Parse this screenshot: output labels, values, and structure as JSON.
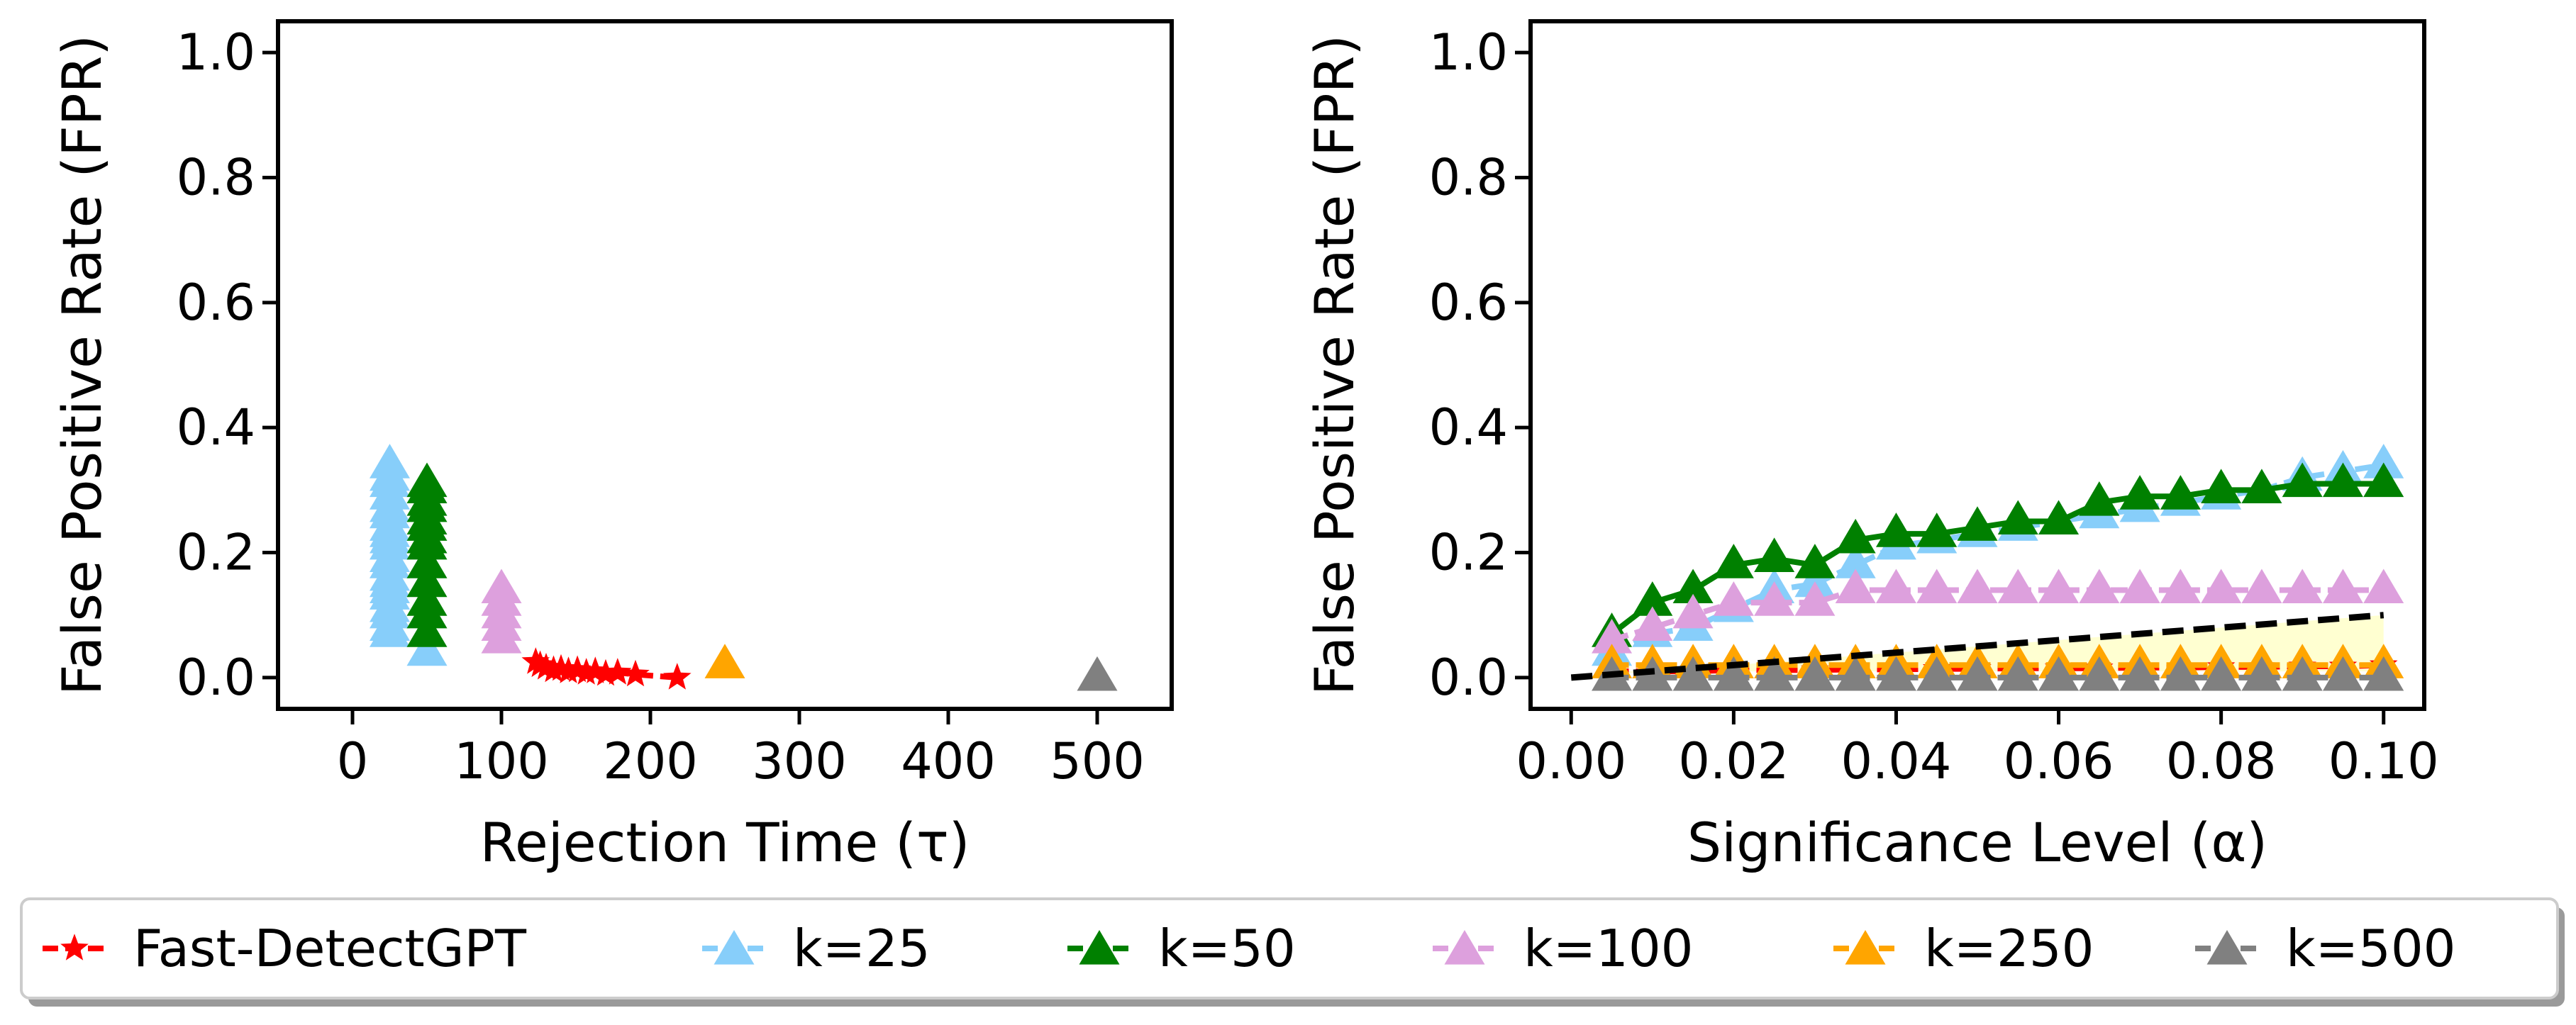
{
  "legend": {
    "entries": [
      {
        "label": "Fast-DetectGPT",
        "color": "#ff0000",
        "marker": "star"
      },
      {
        "label": "k=25",
        "color": "#87cefa",
        "marker": "triangle"
      },
      {
        "label": "k=50",
        "color": "#008000",
        "marker": "triangle"
      },
      {
        "label": "k=100",
        "color": "#dda0dd",
        "marker": "triangle"
      },
      {
        "label": "k=250",
        "color": "#ffa500",
        "marker": "triangle"
      },
      {
        "label": "k=500",
        "color": "#808080",
        "marker": "triangle"
      }
    ],
    "placement": "bottom-center, below both panels"
  },
  "chart_data": [
    {
      "type": "scatter",
      "xlabel": "Rejection Time (τ)",
      "ylabel": "False Positive Rate (FPR)",
      "xlim": [
        -50,
        550
      ],
      "ylim": [
        -0.05,
        1.05
      ],
      "xticks": [
        "0",
        "100",
        "200",
        "300",
        "400",
        "500"
      ],
      "yticks": [
        "0.0",
        "0.2",
        "0.4",
        "0.6",
        "0.8",
        "1.0"
      ],
      "xtick_values": [
        0,
        100,
        200,
        300,
        400,
        500
      ],
      "ytick_values": [
        0,
        0.2,
        0.4,
        0.6,
        0.8,
        1.0
      ],
      "grid": false,
      "series": [
        {
          "name": "Fast-DetectGPT",
          "marker": "star",
          "color": "#ff0000",
          "connected": true,
          "x": [
            218,
            190,
            178,
            170,
            163,
            157,
            151,
            145,
            140,
            135,
            130,
            126,
            123
          ],
          "y": [
            0.0,
            0.005,
            0.008,
            0.006,
            0.01,
            0.008,
            0.012,
            0.01,
            0.014,
            0.012,
            0.016,
            0.02,
            0.025
          ]
        },
        {
          "name": "k=25",
          "marker": "triangle",
          "color": "#87cefa",
          "connected": false,
          "x": [
            25,
            25,
            25,
            25,
            25,
            25,
            25,
            25,
            25,
            25,
            25,
            25,
            25,
            25,
            25,
            25,
            25,
            25,
            25,
            25,
            50
          ],
          "y": [
            0.34,
            0.32,
            0.31,
            0.29,
            0.27,
            0.26,
            0.24,
            0.23,
            0.22,
            0.21,
            0.19,
            0.18,
            0.16,
            0.15,
            0.14,
            0.13,
            0.11,
            0.1,
            0.08,
            0.07,
            0.04
          ]
        },
        {
          "name": "k=50",
          "marker": "triangle",
          "color": "#008000",
          "connected": false,
          "x": [
            50,
            50,
            50,
            50,
            50,
            50,
            50,
            50,
            50,
            50,
            50,
            50,
            50
          ],
          "y": [
            0.31,
            0.3,
            0.28,
            0.27,
            0.25,
            0.24,
            0.22,
            0.21,
            0.18,
            0.15,
            0.12,
            0.1,
            0.07
          ]
        },
        {
          "name": "k=100",
          "marker": "triangle",
          "color": "#dda0dd",
          "connected": false,
          "x": [
            100,
            100,
            100,
            100,
            100
          ],
          "y": [
            0.14,
            0.12,
            0.1,
            0.08,
            0.06
          ]
        },
        {
          "name": "k=250",
          "marker": "triangle",
          "color": "#ffa500",
          "connected": false,
          "x": [
            250
          ],
          "y": [
            0.02
          ]
        },
        {
          "name": "k=500",
          "marker": "triangle",
          "color": "#808080",
          "connected": false,
          "x": [
            500
          ],
          "y": [
            0.0
          ]
        }
      ]
    },
    {
      "type": "line",
      "xlabel": "Significance Level (α)",
      "ylabel": "False Positive Rate (FPR)",
      "xlim": [
        -0.005,
        0.105
      ],
      "ylim": [
        -0.05,
        1.05
      ],
      "xticks": [
        "0.00",
        "0.02",
        "0.04",
        "0.06",
        "0.08",
        "0.10"
      ],
      "yticks": [
        "0.0",
        "0.2",
        "0.4",
        "0.6",
        "0.8",
        "1.0"
      ],
      "xtick_values": [
        0,
        0.02,
        0.04,
        0.06,
        0.08,
        0.1
      ],
      "ytick_values": [
        0,
        0.2,
        0.4,
        0.6,
        0.8,
        1.0
      ],
      "grid": false,
      "x": [
        0.005,
        0.01,
        0.015,
        0.02,
        0.025,
        0.03,
        0.035,
        0.04,
        0.045,
        0.05,
        0.055,
        0.06,
        0.065,
        0.07,
        0.075,
        0.08,
        0.085,
        0.09,
        0.095,
        0.1
      ],
      "reference_line": {
        "x": [
          0,
          0.1
        ],
        "y": [
          0,
          0.1
        ],
        "color": "#000000",
        "style": "dashed"
      },
      "shaded_region": {
        "between": "y=alpha and y=0.01",
        "color": "#ffffcc"
      },
      "series": [
        {
          "name": "Fast-DetectGPT",
          "marker": "star",
          "color": "#ff0000",
          "dashed": true,
          "y": [
            0.01,
            0.01,
            0.01,
            0.012,
            0.012,
            0.012,
            0.013,
            0.013,
            0.014,
            0.014,
            0.015,
            0.015,
            0.015,
            0.016,
            0.016,
            0.017,
            0.017,
            0.018,
            0.018,
            0.02
          ]
        },
        {
          "name": "k=25",
          "marker": "triangle",
          "color": "#87cefa",
          "dashed": true,
          "y": [
            0.04,
            0.07,
            0.08,
            0.11,
            0.14,
            0.15,
            0.18,
            0.21,
            0.22,
            0.23,
            0.24,
            0.25,
            0.26,
            0.27,
            0.28,
            0.29,
            0.3,
            0.32,
            0.33,
            0.34
          ]
        },
        {
          "name": "k=50",
          "marker": "triangle",
          "color": "#008000",
          "dashed": false,
          "y": [
            0.07,
            0.12,
            0.14,
            0.18,
            0.19,
            0.18,
            0.22,
            0.23,
            0.23,
            0.24,
            0.25,
            0.25,
            0.28,
            0.29,
            0.29,
            0.3,
            0.3,
            0.31,
            0.31,
            0.31
          ]
        },
        {
          "name": "k=100",
          "marker": "triangle",
          "color": "#dda0dd",
          "dashed": true,
          "y": [
            0.06,
            0.08,
            0.1,
            0.12,
            0.12,
            0.12,
            0.14,
            0.14,
            0.14,
            0.14,
            0.14,
            0.14,
            0.14,
            0.14,
            0.14,
            0.14,
            0.14,
            0.14,
            0.14,
            0.14
          ]
        },
        {
          "name": "k=250",
          "marker": "triangle",
          "color": "#ffa500",
          "dashed": true,
          "y": [
            0.02,
            0.02,
            0.02,
            0.02,
            0.02,
            0.02,
            0.02,
            0.02,
            0.02,
            0.02,
            0.02,
            0.02,
            0.02,
            0.02,
            0.02,
            0.02,
            0.02,
            0.02,
            0.02,
            0.02
          ]
        },
        {
          "name": "k=500",
          "marker": "triangle",
          "color": "#808080",
          "dashed": true,
          "y": [
            0,
            0,
            0,
            0,
            0,
            0,
            0,
            0,
            0,
            0,
            0,
            0,
            0,
            0,
            0,
            0,
            0,
            0,
            0,
            0
          ]
        }
      ]
    }
  ]
}
